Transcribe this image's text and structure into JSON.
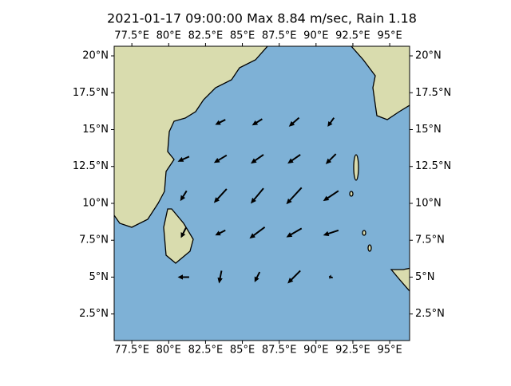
{
  "chart_data": {
    "type": "quiver",
    "title": "2021-01-17 09:00:00 Max 8.84 m/sec, Rain 1.18",
    "xlim": [
      76.3,
      96.35
    ],
    "ylim": [
      0.7,
      20.65
    ],
    "xticks": [
      {
        "value": 77.5,
        "label": "77.5°E"
      },
      {
        "value": 80,
        "label": "80°E"
      },
      {
        "value": 82.5,
        "label": "82.5°E"
      },
      {
        "value": 85,
        "label": "85°E"
      },
      {
        "value": 87.5,
        "label": "87.5°E"
      },
      {
        "value": 90,
        "label": "90°E"
      },
      {
        "value": 92.5,
        "label": "92.5°E"
      },
      {
        "value": 95,
        "label": "95°E"
      }
    ],
    "yticks": [
      {
        "value": 2.5,
        "label": "2.5°N"
      },
      {
        "value": 5,
        "label": "5°N"
      },
      {
        "value": 7.5,
        "label": "7.5°N"
      },
      {
        "value": 10,
        "label": "10°N"
      },
      {
        "value": 12.5,
        "label": "12.5°N"
      },
      {
        "value": 15,
        "label": "15°N"
      },
      {
        "value": 17.5,
        "label": "17.5°N"
      },
      {
        "value": 20,
        "label": "20°N"
      }
    ],
    "color": "#000000",
    "lon": [
      83.5,
      86,
      88.5,
      91,
      81,
      83.5,
      86,
      88.5,
      91,
      81,
      83.5,
      86,
      88.5,
      91,
      81,
      83.5,
      86,
      88.5,
      91,
      81,
      83.5,
      86,
      88.5,
      91
    ],
    "lat": [
      15.5,
      15.5,
      15.5,
      15.5,
      13,
      13,
      13,
      13,
      13,
      10.5,
      10.5,
      10.5,
      10.5,
      10.5,
      8,
      8,
      8,
      8,
      8,
      5,
      5,
      5,
      5,
      5
    ],
    "u": [
      -4,
      -4,
      -4,
      -2.5,
      -4.5,
      -5,
      -5,
      -5,
      -4,
      -2.5,
      -5,
      -5,
      -6,
      -6,
      -2,
      -4,
      -6,
      -6,
      -6,
      -4.5,
      -1,
      -2,
      -5,
      -1.5
    ],
    "v": [
      -2,
      -2.5,
      -3.5,
      -3.5,
      -2,
      -3,
      -3.5,
      -3.5,
      -4,
      -4,
      -5.5,
      -6,
      -6.5,
      -4,
      -4,
      -2,
      -4.5,
      -3.5,
      -2,
      0,
      -5,
      -4,
      -5,
      0.5
    ]
  }
}
